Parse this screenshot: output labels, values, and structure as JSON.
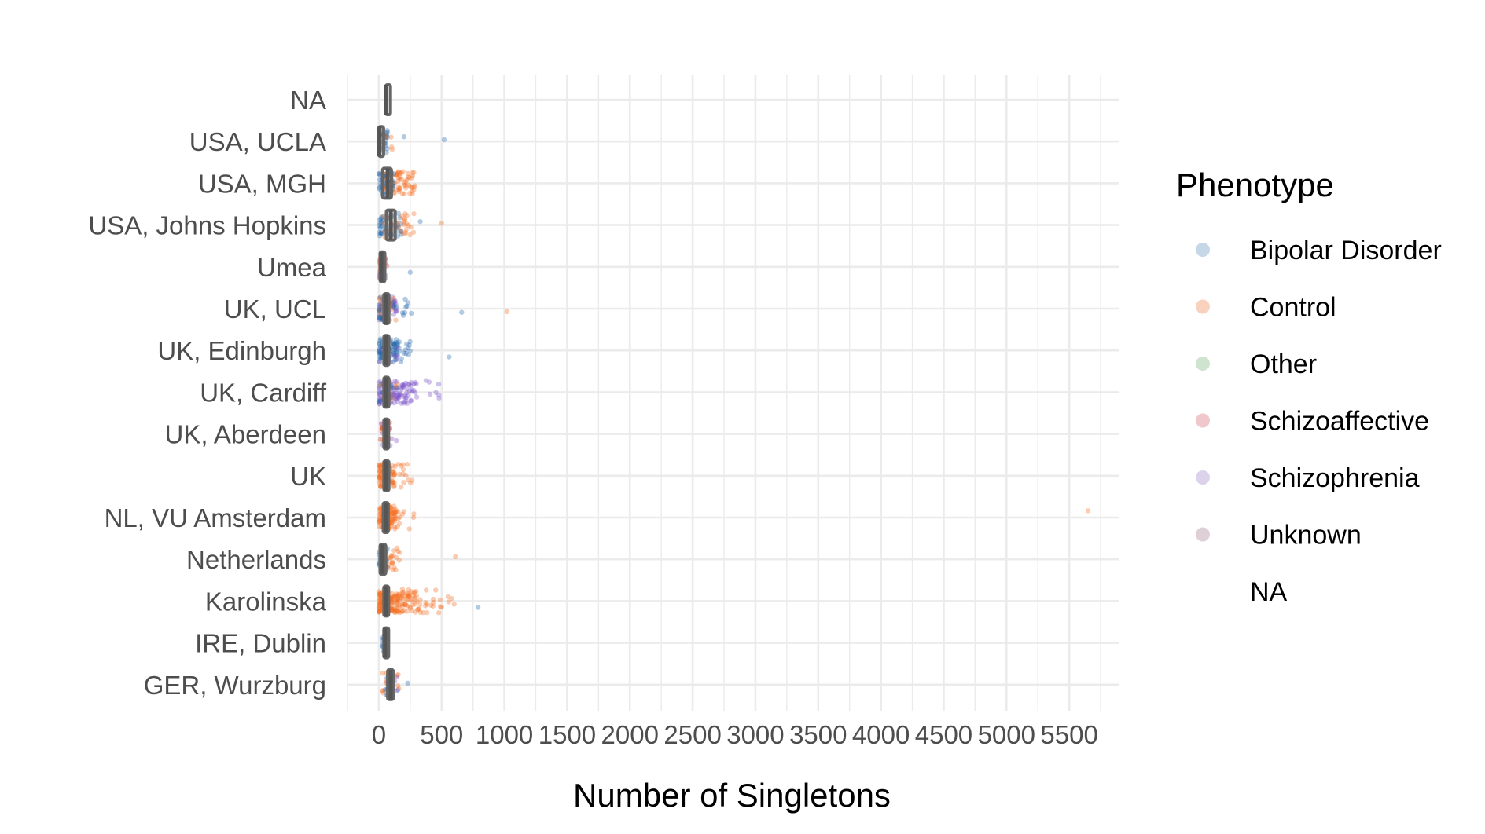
{
  "chart_data": {
    "type": "scatter",
    "subtype": "jittered strip plot with boxplots",
    "orientation": "horizontal",
    "title": "",
    "xlabel": "Number of Singletons",
    "ylabel": "",
    "xlim": [
      -250,
      5900
    ],
    "x_ticks": [
      0,
      500,
      1000,
      1500,
      2000,
      2500,
      3000,
      3500,
      4000,
      4500,
      5000,
      5500
    ],
    "x_tick_labels": [
      "0",
      "500",
      "1000",
      "1500",
      "2000",
      "2500",
      "3000",
      "3500",
      "4000",
      "4500",
      "5000",
      "5500"
    ],
    "categories": [
      "GER, Wurzburg",
      "IRE, Dublin",
      "Karolinska",
      "Netherlands",
      "NL, VU Amsterdam",
      "UK",
      "UK, Aberdeen",
      "UK, Cardiff",
      "UK, Edinburgh",
      "UK, UCL",
      "Umea",
      "USA, Johns Hopkins",
      "USA, MGH",
      "USA, UCLA",
      "NA"
    ],
    "grid": true,
    "legend": {
      "title": "Phenotype",
      "position": "right",
      "entries": [
        {
          "label": "Bipolar Disorder",
          "color": "#c6d7e8"
        },
        {
          "label": "Control",
          "color": "#f9d2bf"
        },
        {
          "label": "Other",
          "color": "#cfe3cf"
        },
        {
          "label": "Schizoaffective",
          "color": "#f0c7cb"
        },
        {
          "label": "Schizophrenia",
          "color": "#dcd2ec"
        },
        {
          "label": "Unknown",
          "color": "#dfd0d8"
        },
        {
          "label": "NA",
          "color": "none"
        }
      ]
    },
    "point_colors": {
      "Bipolar Disorder": "#2166ac",
      "Control": "#f46d1f",
      "Other": "#4daf4a",
      "Schizoaffective": "#d6404e",
      "Schizophrenia": "#7b4fc9",
      "Unknown": "#8c4a6b"
    },
    "box_color": "#666666",
    "boxes": [
      {
        "category": "GER, Wurzburg",
        "q1": 70,
        "median": 95,
        "q3": 115
      },
      {
        "category": "IRE, Dublin",
        "q1": 40,
        "median": 50,
        "q3": 60
      },
      {
        "category": "Karolinska",
        "q1": 40,
        "median": 55,
        "q3": 75
      },
      {
        "category": "Netherlands",
        "q1": 10,
        "median": 30,
        "q3": 55
      },
      {
        "category": "NL, VU Amsterdam",
        "q1": 35,
        "median": 55,
        "q3": 75
      },
      {
        "category": "UK",
        "q1": 40,
        "median": 60,
        "q3": 80
      },
      {
        "category": "UK, Aberdeen",
        "q1": 40,
        "median": 55,
        "q3": 65
      },
      {
        "category": "UK, Cardiff",
        "q1": 40,
        "median": 60,
        "q3": 80
      },
      {
        "category": "UK, Edinburgh",
        "q1": 40,
        "median": 60,
        "q3": 80
      },
      {
        "category": "UK, UCL",
        "q1": 40,
        "median": 60,
        "q3": 80
      },
      {
        "category": "Umea",
        "q1": 10,
        "median": 20,
        "q3": 35
      },
      {
        "category": "USA, Johns Hopkins",
        "q1": 60,
        "median": 95,
        "q3": 130
      },
      {
        "category": "USA, MGH",
        "q1": 30,
        "median": 70,
        "q3": 100
      },
      {
        "category": "USA, UCLA",
        "q1": 0,
        "median": 5,
        "q3": 20
      },
      {
        "category": "NA",
        "q1": 55,
        "median": 60,
        "q3": 70
      }
    ],
    "groups": [
      {
        "category": "GER, Wurzburg",
        "clusters": [
          {
            "phenotype": "Control",
            "n": 22,
            "lo": 30,
            "hi": 160
          },
          {
            "phenotype": "Bipolar Disorder",
            "n": 10,
            "lo": 20,
            "hi": 150
          },
          {
            "phenotype": "Schizophrenia",
            "n": 6,
            "lo": 60,
            "hi": 170
          }
        ],
        "outliers": [
          {
            "phenotype": "Bipolar Disorder",
            "x": 230
          }
        ]
      },
      {
        "category": "IRE, Dublin",
        "clusters": [
          {
            "phenotype": "Bipolar Disorder",
            "n": 25,
            "lo": 30,
            "hi": 75
          }
        ],
        "outliers": []
      },
      {
        "category": "Karolinska",
        "clusters": [
          {
            "phenotype": "Control",
            "n": 160,
            "lo": 0,
            "hi": 290
          },
          {
            "phenotype": "Control",
            "n": 30,
            "lo": 280,
            "hi": 560
          }
        ],
        "outliers": [
          {
            "phenotype": "Control",
            "x": 600
          },
          {
            "phenotype": "Control",
            "x": 580
          },
          {
            "phenotype": "Bipolar Disorder",
            "x": 790
          }
        ]
      },
      {
        "category": "Netherlands",
        "clusters": [
          {
            "phenotype": "Bipolar Disorder",
            "n": 35,
            "lo": 0,
            "hi": 70
          },
          {
            "phenotype": "Control",
            "n": 28,
            "lo": 20,
            "hi": 180
          }
        ],
        "outliers": [
          {
            "phenotype": "Control",
            "x": 610
          }
        ]
      },
      {
        "category": "NL, VU Amsterdam",
        "clusters": [
          {
            "phenotype": "Control",
            "n": 90,
            "lo": 0,
            "hi": 130
          },
          {
            "phenotype": "Control",
            "n": 14,
            "lo": 130,
            "hi": 300
          }
        ],
        "outliers": [
          {
            "phenotype": "Control",
            "x": 5650
          }
        ]
      },
      {
        "category": "UK",
        "clusters": [
          {
            "phenotype": "Control",
            "n": 80,
            "lo": 0,
            "hi": 130
          },
          {
            "phenotype": "Control",
            "n": 14,
            "lo": 130,
            "hi": 290
          }
        ],
        "outliers": []
      },
      {
        "category": "UK, Aberdeen",
        "clusters": [
          {
            "phenotype": "Schizophrenia",
            "n": 14,
            "lo": 20,
            "hi": 110
          },
          {
            "phenotype": "Schizoaffective",
            "n": 12,
            "lo": 10,
            "hi": 100
          },
          {
            "phenotype": "Control",
            "n": 8,
            "lo": 20,
            "hi": 90
          }
        ],
        "outliers": [
          {
            "phenotype": "Schizophrenia",
            "x": 140
          }
        ]
      },
      {
        "category": "UK, Cardiff",
        "clusters": [
          {
            "phenotype": "Schizophrenia",
            "n": 110,
            "lo": 0,
            "hi": 290
          },
          {
            "phenotype": "Bipolar Disorder",
            "n": 20,
            "lo": 0,
            "hi": 160
          },
          {
            "phenotype": "Control",
            "n": 10,
            "lo": 0,
            "hi": 150
          },
          {
            "phenotype": "Schizophrenia",
            "n": 10,
            "lo": 290,
            "hi": 480
          }
        ],
        "outliers": []
      },
      {
        "category": "UK, Edinburgh",
        "clusters": [
          {
            "phenotype": "Bipolar Disorder",
            "n": 80,
            "lo": 0,
            "hi": 140
          },
          {
            "phenotype": "Bipolar Disorder",
            "n": 18,
            "lo": 140,
            "hi": 270
          },
          {
            "phenotype": "Schizophrenia",
            "n": 8,
            "lo": 0,
            "hi": 150
          }
        ],
        "outliers": [
          {
            "phenotype": "Bipolar Disorder",
            "x": 560
          }
        ]
      },
      {
        "category": "UK, UCL",
        "clusters": [
          {
            "phenotype": "Schizophrenia",
            "n": 50,
            "lo": 0,
            "hi": 150
          },
          {
            "phenotype": "Control",
            "n": 25,
            "lo": 0,
            "hi": 140
          },
          {
            "phenotype": "Bipolar Disorder",
            "n": 20,
            "lo": 0,
            "hi": 160
          },
          {
            "phenotype": "Bipolar Disorder",
            "n": 8,
            "lo": 180,
            "hi": 450
          }
        ],
        "outliers": [
          {
            "phenotype": "Bipolar Disorder",
            "x": 660
          },
          {
            "phenotype": "Control",
            "x": 1020
          }
        ]
      },
      {
        "category": "Umea",
        "clusters": [
          {
            "phenotype": "Schizoaffective",
            "n": 14,
            "lo": 0,
            "hi": 70
          },
          {
            "phenotype": "Control",
            "n": 14,
            "lo": 0,
            "hi": 60
          },
          {
            "phenotype": "Schizophrenia",
            "n": 8,
            "lo": 0,
            "hi": 60
          }
        ],
        "outliers": [
          {
            "phenotype": "Bipolar Disorder",
            "x": 250
          }
        ]
      },
      {
        "category": "USA, Johns Hopkins",
        "clusters": [
          {
            "phenotype": "Bipolar Disorder",
            "n": 50,
            "lo": 0,
            "hi": 190
          },
          {
            "phenotype": "Control",
            "n": 30,
            "lo": 30,
            "hi": 290
          }
        ],
        "outliers": [
          {
            "phenotype": "Bipolar Disorder",
            "x": 330
          },
          {
            "phenotype": "Control",
            "x": 500
          }
        ]
      },
      {
        "category": "USA, MGH",
        "clusters": [
          {
            "phenotype": "Control",
            "n": 80,
            "lo": 30,
            "hi": 290
          },
          {
            "phenotype": "Bipolar Disorder",
            "n": 40,
            "lo": 0,
            "hi": 120
          }
        ],
        "outliers": []
      },
      {
        "category": "USA, UCLA",
        "clusters": [
          {
            "phenotype": "Bipolar Disorder",
            "n": 28,
            "lo": 0,
            "hi": 80
          },
          {
            "phenotype": "Control",
            "n": 8,
            "lo": 20,
            "hi": 110
          }
        ],
        "outliers": [
          {
            "phenotype": "Bipolar Disorder",
            "x": 200
          },
          {
            "phenotype": "Bipolar Disorder",
            "x": 520
          }
        ]
      },
      {
        "category": "NA",
        "clusters": [],
        "outliers": []
      }
    ]
  }
}
